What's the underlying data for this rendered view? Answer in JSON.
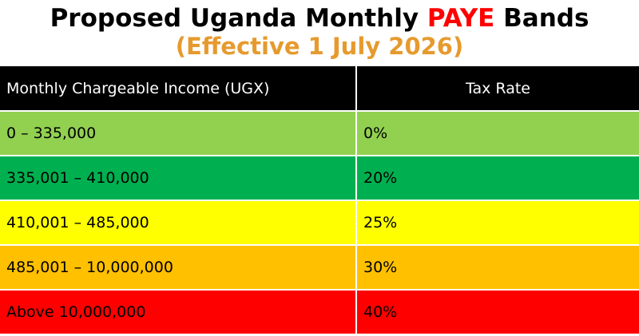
{
  "title": {
    "part1": "Proposed Uganda Monthly ",
    "highlight": "PAYE",
    "part2": " Bands",
    "highlight_color": "#ff0000"
  },
  "subtitle": "(Effective 1 July 2026)",
  "subtitle_color": "#e69a2e",
  "table": {
    "headers": {
      "income": "Monthly Chargeable Income (UGX)",
      "rate": "Tax Rate"
    },
    "header_color": "#000000",
    "rows": [
      {
        "income": "0 – 335,000",
        "rate": "0%",
        "color": "#92d050"
      },
      {
        "income": "335,001 – 410,000",
        "rate": "20%",
        "color": "#00b050"
      },
      {
        "income": "410,001 – 485,000",
        "rate": "25%",
        "color": "#ffff00"
      },
      {
        "income": "485,001 – 10,000,000",
        "rate": "30%",
        "color": "#ffc000"
      },
      {
        "income": "Above 10,000,000",
        "rate": "40%",
        "color": "#ff0000"
      }
    ]
  }
}
